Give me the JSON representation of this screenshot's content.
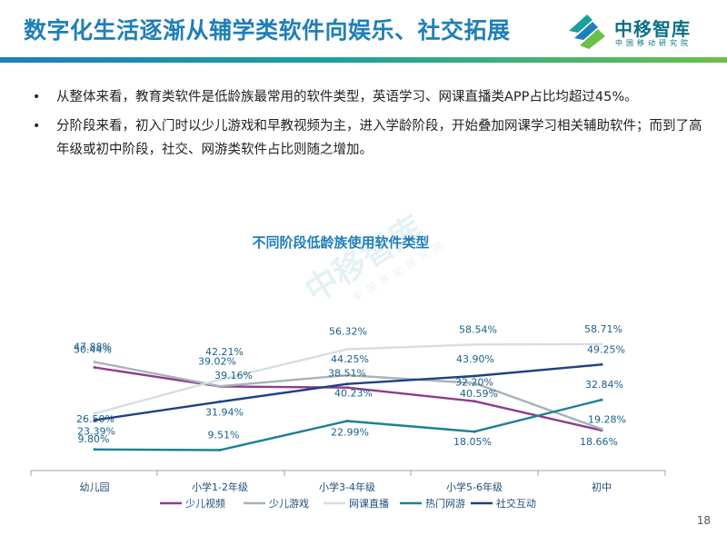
{
  "slide": {
    "title": "数字化生活逐渐从辅学类软件向娱乐、社交拓展",
    "logo_name": "中移智库",
    "logo_sub": "中国移动研究院",
    "watermark_main": "中移智库",
    "watermark_sub": "中国移动研究院",
    "bullets": [
      "从整体来看，教育类软件是低龄族最常用的软件类型，英语学习、网课直播类APP占比均超过45%。",
      "分阶段来看，初入门时以少儿游戏和早教视频为主，进入学龄阶段，开始叠加网课学习相关辅助软件；而到了高年级或初中阶段，社交、网游类软件占比则随之增加。"
    ],
    "page_number": "18"
  },
  "chart_data": {
    "type": "line",
    "title": "不同阶段低龄族使用软件类型",
    "categories": [
      "幼儿园",
      "小学1-2年级",
      "小学3-4年级",
      "小学5-6年级",
      "初中"
    ],
    "y_unit": "%",
    "ylim": [
      0,
      70
    ],
    "grid": false,
    "legend_position": "bottom",
    "series": [
      {
        "name": "少儿视频",
        "values": [
          47.88,
          39.02,
          38.51,
          32.2,
          18.66
        ],
        "color": "#8e3c8e"
      },
      {
        "name": "少儿游戏",
        "values": [
          50.44,
          39.16,
          44.25,
          40.59,
          19.28
        ],
        "color": "#a7b3bb"
      },
      {
        "name": "网课直播",
        "values": [
          26.5,
          42.21,
          56.32,
          58.54,
          58.71
        ],
        "color": "#d8dde1"
      },
      {
        "name": "热门网游",
        "values": [
          9.8,
          9.51,
          22.99,
          18.05,
          32.84
        ],
        "color": "#1a8193"
      },
      {
        "name": "社交互动",
        "values": [
          23.39,
          31.94,
          40.23,
          43.9,
          49.25
        ],
        "color": "#1f3f86"
      }
    ],
    "labels": [
      [
        "47.88%",
        "39.02%",
        "38.51%",
        "32.20%",
        "18.66%"
      ],
      [
        "50.44%",
        "39.16%",
        "44.25%",
        "40.59%",
        "19.28%"
      ],
      [
        "26.50%",
        "42.21%",
        "56.32%",
        "58.54%",
        "58.71%"
      ],
      [
        "9.80%",
        "9.51%",
        "22.99%",
        "18.05%",
        "32.84%"
      ],
      [
        "23.39%",
        "31.94%",
        "40.23%",
        "43.90%",
        "49.25%"
      ]
    ]
  }
}
